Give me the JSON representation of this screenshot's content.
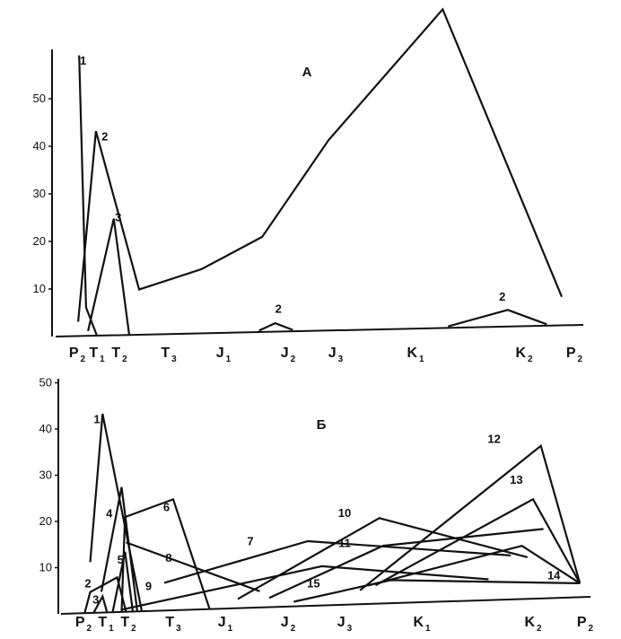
{
  "chart_data": [
    {
      "type": "line",
      "title": "А",
      "xlabel": "",
      "ylabel": "",
      "ylim": [
        0,
        60
      ],
      "yticks": [
        10,
        20,
        30,
        40,
        50
      ],
      "x_ticks": [
        {
          "id": "P2a",
          "base": "P",
          "sub": "2"
        },
        {
          "id": "T1",
          "base": "T",
          "sub": "1"
        },
        {
          "id": "T2",
          "base": "T",
          "sub": "2"
        },
        {
          "id": "T3",
          "base": "T",
          "sub": "3"
        },
        {
          "id": "J1",
          "base": "J",
          "sub": "1"
        },
        {
          "id": "J2",
          "base": "J",
          "sub": "2"
        },
        {
          "id": "J3",
          "base": "J",
          "sub": "3"
        },
        {
          "id": "K1",
          "base": "K",
          "sub": "1"
        },
        {
          "id": "K2",
          "base": "K",
          "sub": "2"
        },
        {
          "id": "P2b",
          "base": "P",
          "sub": "2"
        }
      ],
      "series": [
        {
          "name": "1",
          "points": [
            [
              0.1,
              59
            ],
            [
              0.45,
              6
            ],
            [
              1.0,
              0
            ]
          ]
        },
        {
          "name": "2",
          "points": [
            [
              0.05,
              3
            ],
            [
              0.95,
              43
            ],
            [
              2.4,
              9.5
            ],
            [
              3.6,
              13.5
            ],
            [
              4.6,
              20
            ],
            [
              5.85,
              40
            ],
            [
              7.25,
              67
            ],
            [
              8.75,
              6
            ]
          ]
        },
        {
          "name": "2",
          "points": [
            [
              4.55,
              0.3
            ],
            [
              4.8,
              1.8
            ],
            [
              5.1,
              0.3
            ]
          ]
        },
        {
          "name": "2",
          "points": [
            [
              7.3,
              0.3
            ],
            [
              7.85,
              3.5
            ],
            [
              8.45,
              0.3
            ]
          ]
        },
        {
          "name": "3",
          "points": [
            [
              0.55,
              1
            ],
            [
              1.75,
              24.5
            ],
            [
              2.2,
              0
            ]
          ]
        }
      ],
      "series_labels": [
        {
          "text": "1",
          "x": 0.3,
          "y": 57
        },
        {
          "text": "2",
          "x": 1.35,
          "y": 41
        },
        {
          "text": "3",
          "x": 1.95,
          "y": 24
        },
        {
          "text": "2",
          "x": 4.85,
          "y": 4
        },
        {
          "text": "2",
          "x": 7.8,
          "y": 5.5
        }
      ]
    },
    {
      "type": "line",
      "title": "Б",
      "xlabel": "",
      "ylabel": "",
      "ylim": [
        0,
        50
      ],
      "yticks": [
        10,
        20,
        30,
        40,
        50
      ],
      "x_ticks": [
        {
          "id": "P2a",
          "base": "P",
          "sub": "2"
        },
        {
          "id": "T1",
          "base": "T",
          "sub": "1"
        },
        {
          "id": "T2",
          "base": "T",
          "sub": "2"
        },
        {
          "id": "T3",
          "base": "T",
          "sub": "3"
        },
        {
          "id": "J1",
          "base": "J",
          "sub": "1"
        },
        {
          "id": "J2",
          "base": "J",
          "sub": "2"
        },
        {
          "id": "J3",
          "base": "J",
          "sub": "3"
        },
        {
          "id": "K1",
          "base": "K",
          "sub": "1"
        },
        {
          "id": "K2",
          "base": "K",
          "sub": "2"
        },
        {
          "id": "P2b",
          "base": "P",
          "sub": "2"
        }
      ],
      "series": [
        {
          "name": "1",
          "points": [
            [
              0.3,
              11
            ],
            [
              0.85,
              43
            ],
            [
              2.3,
              0
            ]
          ]
        },
        {
          "name": "2",
          "points": [
            [
              0.05,
              0
            ],
            [
              0.3,
              4.5
            ],
            [
              1.5,
              7.5
            ],
            [
              1.9,
              0
            ]
          ]
        },
        {
          "name": "3",
          "points": [
            [
              0.45,
              0
            ],
            [
              0.85,
              3.5
            ],
            [
              1.05,
              0
            ]
          ]
        },
        {
          "name": "4",
          "points": [
            [
              0.8,
              4.5
            ],
            [
              1.7,
              27
            ],
            [
              2.2,
              0
            ]
          ]
        },
        {
          "name": "5",
          "points": [
            [
              1.3,
              0
            ],
            [
              1.85,
              13
            ],
            [
              2.1,
              0
            ]
          ]
        },
        {
          "name": "6",
          "points": [
            [
              1.7,
              0
            ],
            [
              1.85,
              20.5
            ],
            [
              3.0,
              24
            ],
            [
              3.7,
              0
            ]
          ]
        },
        {
          "name": "7",
          "points": [
            [
              2.8,
              6
            ],
            [
              5.35,
              14
            ],
            [
              7.8,
              9.5
            ]
          ]
        },
        {
          "name": "8",
          "points": [
            [
              1.9,
              15
            ],
            [
              4.55,
              3.5
            ]
          ]
        },
        {
          "name": "9",
          "points": [
            [
              1.7,
              0.5
            ],
            [
              5.6,
              8.5
            ],
            [
              7.6,
              4.5
            ]
          ]
        },
        {
          "name": "10",
          "points": [
            [
              4.2,
              2
            ],
            [
              6.45,
              18.5
            ],
            [
              7.95,
              9
            ]
          ]
        },
        {
          "name": "11",
          "points": [
            [
              4.7,
              2
            ],
            [
              6.5,
              12.5
            ],
            [
              8.2,
              15
            ]
          ]
        },
        {
          "name": "12",
          "points": [
            [
              6.2,
              3
            ],
            [
              8.15,
              33
            ],
            [
              8.9,
              3
            ]
          ]
        },
        {
          "name": "13",
          "points": [
            [
              6.4,
              4
            ],
            [
              8.0,
              21.5
            ],
            [
              8.9,
              3
            ]
          ]
        },
        {
          "name": "14",
          "points": [
            [
              6.3,
              4
            ],
            [
              7.9,
              11.5
            ],
            [
              8.9,
              3
            ]
          ]
        },
        {
          "name": "15",
          "points": [
            [
              5.1,
              1
            ],
            [
              6.6,
              5
            ],
            [
              8.9,
              3
            ]
          ]
        }
      ],
      "series_labels": [
        {
          "text": "1",
          "x": 0.6,
          "y": 41
        },
        {
          "text": "2",
          "x": 0.2,
          "y": 5.5
        },
        {
          "text": "3",
          "x": 0.55,
          "y": 2
        },
        {
          "text": "4",
          "x": 1.15,
          "y": 20.5
        },
        {
          "text": "5",
          "x": 1.65,
          "y": 10.5
        },
        {
          "text": "6",
          "x": 2.85,
          "y": 21.5
        },
        {
          "text": "7",
          "x": 4.4,
          "y": 13.5
        },
        {
          "text": "8",
          "x": 2.9,
          "y": 10.5
        },
        {
          "text": "9",
          "x": 2.45,
          "y": 4.5
        },
        {
          "text": "10",
          "x": 6.0,
          "y": 19
        },
        {
          "text": "11",
          "x": 6.0,
          "y": 12.5
        },
        {
          "text": "12",
          "x": 7.65,
          "y": 34
        },
        {
          "text": "13",
          "x": 7.85,
          "y": 25
        },
        {
          "text": "14",
          "x": 8.4,
          "y": 4
        },
        {
          "text": "15",
          "x": 5.45,
          "y": 4
        }
      ]
    }
  ]
}
